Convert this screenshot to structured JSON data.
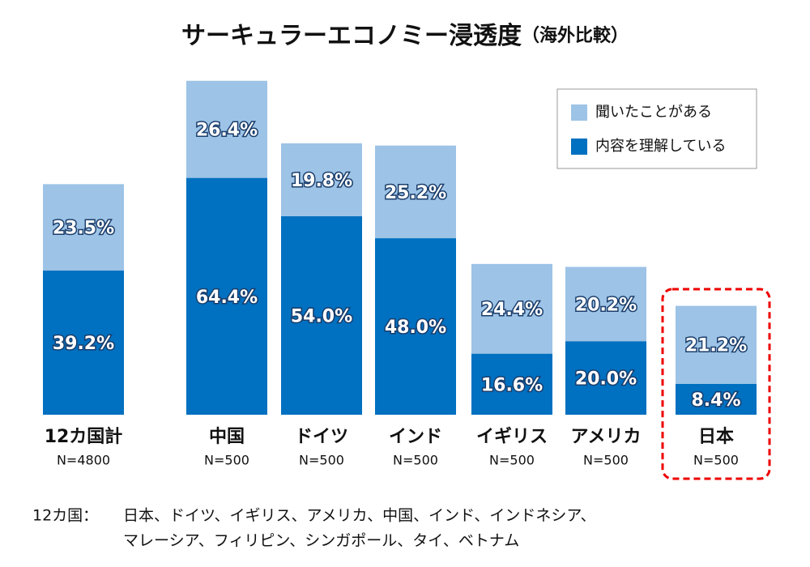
{
  "chart_data": {
    "type": "bar",
    "stacked": true,
    "title": "サーキュラーエコノミー浸透度",
    "subtitle": "（海外比較）",
    "categories": [
      "12カ国計",
      "中国",
      "ドイツ",
      "インド",
      "イギリス",
      "アメリカ",
      "日本"
    ],
    "sample_sizes": [
      "N=4800",
      "N=500",
      "N=500",
      "N=500",
      "N=500",
      "N=500",
      "N=500"
    ],
    "highlight_index": 6,
    "series": [
      {
        "name": "内容を理解している",
        "color": "#0070c0",
        "values": [
          39.2,
          64.4,
          54.0,
          48.0,
          16.6,
          20.0,
          8.4
        ],
        "value_labels": [
          "39.2%",
          "64.4%",
          "54.0%",
          "48.0%",
          "16.6%",
          "20.0%",
          "8.4%"
        ]
      },
      {
        "name": "聞いたことがある",
        "color": "#9dc3e6",
        "values": [
          23.5,
          26.4,
          19.8,
          25.2,
          24.4,
          20.2,
          21.2
        ],
        "value_labels": [
          "23.5%",
          "26.4%",
          "19.8%",
          "25.2%",
          "24.4%",
          "20.2%",
          "21.2%"
        ]
      }
    ],
    "footnote": {
      "label": "12カ国：",
      "lines": [
        "日本、ドイツ、イギリス、アメリカ、中国、インド、インドネシア、",
        "マレーシア、フィリピン、シンガポール、タイ、ベトナム"
      ]
    }
  }
}
